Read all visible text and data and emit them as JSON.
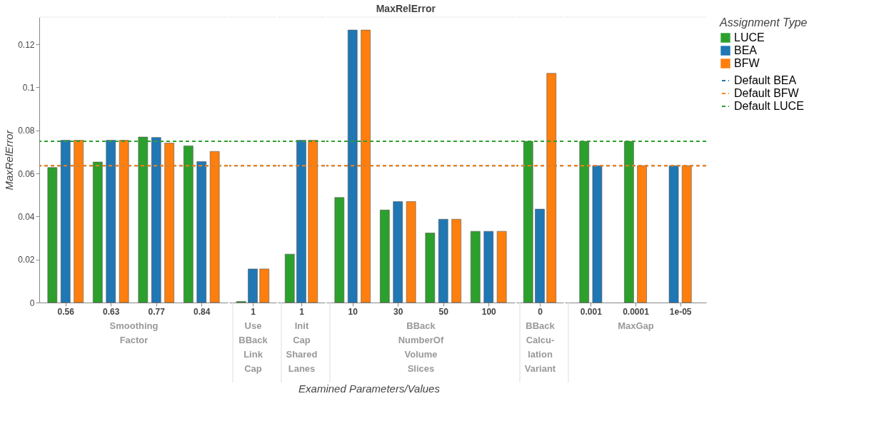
{
  "chart_data": [
    {
      "type": "bar",
      "title": "MaxRelError",
      "xlabel": "Smoothing\nFactor",
      "ylabel": "MaxRelError",
      "legend_title": "Assignment Type",
      "annotations": [
        "Examined Parameters/Values"
      ],
      "categories": [
        "0.56",
        "0.63",
        "0.77",
        "0.84"
      ],
      "series": [
        {
          "name": "LUCE",
          "color": "#2ca02c",
          "values": [
            0.0627,
            0.0653,
            0.0769,
            0.0728
          ]
        },
        {
          "name": "BEA",
          "color": "#1f77b4",
          "values": [
            0.0754,
            0.0754,
            0.0767,
            0.0655
          ]
        },
        {
          "name": "BFW",
          "color": "#ff7f0e",
          "values": [
            0.0754,
            0.0754,
            0.0741,
            0.0702
          ]
        }
      ],
      "ref_lines": [
        {
          "axis": "y",
          "value": 0.0636,
          "label": "Default BEA",
          "color": "#1f77b4",
          "line_style": "dashed"
        },
        {
          "axis": "y",
          "value": 0.0636,
          "label": "Default BFW",
          "color": "#ff7f0e",
          "line_style": "dashed"
        },
        {
          "axis": "y",
          "value": 0.0749,
          "label": "Default LUCE",
          "color": "#2ca02c",
          "line_style": "dashed"
        }
      ],
      "ylim": [
        0,
        0.1326
      ],
      "yticks": [
        {
          "value": 0,
          "label": "0"
        },
        0.02,
        0.04,
        0.06,
        0.08,
        {
          "value": 0.1,
          "label": "0.1"
        },
        0.12
      ],
      "grid": false,
      "legend": "top right"
    },
    {
      "type": "bar",
      "xlabel": "Use\nBBack\nLink\nCap",
      "categories": [
        "1"
      ],
      "series": [
        {
          "name": "LUCE",
          "color": "#2ca02c",
          "values": [
            0.0005
          ]
        },
        {
          "name": "BEA",
          "color": "#1f77b4",
          "values": [
            0.0156
          ]
        },
        {
          "name": "BFW",
          "color": "#ff7f0e",
          "values": [
            0.0156
          ]
        }
      ],
      "ref_lines": [
        {
          "axis": "y",
          "value": 0.0636,
          "color": "#1f77b4",
          "line_style": "dashed"
        },
        {
          "axis": "y",
          "value": 0.0636,
          "color": "#ff7f0e",
          "line_style": "dashed"
        },
        {
          "axis": "y",
          "value": 0.0749,
          "color": "#2ca02c",
          "line_style": "dashed"
        }
      ],
      "ylim": [
        0,
        0.1326
      ],
      "tick_labels": "x"
    },
    {
      "type": "bar",
      "xlabel": "Init\nCap\nShared\nLanes",
      "categories": [
        "1"
      ],
      "series": [
        {
          "name": "LUCE",
          "color": "#2ca02c",
          "values": [
            0.0225
          ]
        },
        {
          "name": "BEA",
          "color": "#1f77b4",
          "values": [
            0.0754
          ]
        },
        {
          "name": "BFW",
          "color": "#ff7f0e",
          "values": [
            0.0754
          ]
        }
      ],
      "ref_lines": [
        {
          "axis": "y",
          "value": 0.0636,
          "color": "#1f77b4",
          "line_style": "dashed"
        },
        {
          "axis": "y",
          "value": 0.0636,
          "color": "#ff7f0e",
          "line_style": "dashed"
        },
        {
          "axis": "y",
          "value": 0.0749,
          "color": "#2ca02c",
          "line_style": "dashed"
        }
      ],
      "ylim": [
        0,
        0.1326
      ],
      "tick_labels": "x"
    },
    {
      "type": "bar",
      "xlabel": "BBack\nNumberOf\nVolume\nSlices",
      "categories": [
        "10",
        "30",
        "50",
        "100"
      ],
      "series": [
        {
          "name": "LUCE",
          "color": "#2ca02c",
          "values": [
            0.0488,
            0.043,
            0.0323,
            0.0331
          ]
        },
        {
          "name": "BEA",
          "color": "#1f77b4",
          "values": [
            0.1266,
            0.0469,
            0.0387,
            0.0331
          ]
        },
        {
          "name": "BFW",
          "color": "#ff7f0e",
          "values": [
            0.1266,
            0.0469,
            0.0387,
            0.0331
          ]
        }
      ],
      "ref_lines": [
        {
          "axis": "y",
          "value": 0.0636,
          "color": "#1f77b4",
          "line_style": "dashed"
        },
        {
          "axis": "y",
          "value": 0.0636,
          "color": "#ff7f0e",
          "line_style": "dashed"
        },
        {
          "axis": "y",
          "value": 0.0749,
          "color": "#2ca02c",
          "line_style": "dashed"
        }
      ],
      "ylim": [
        0,
        0.1326
      ],
      "tick_labels": "x"
    },
    {
      "type": "bar",
      "xlabel": "BBack\nCalcu-\nlation\nVariant",
      "categories": [
        "0"
      ],
      "series": [
        {
          "name": "LUCE",
          "color": "#2ca02c",
          "values": [
            0.0749
          ]
        },
        {
          "name": "BEA",
          "color": "#1f77b4",
          "values": [
            0.0434
          ]
        },
        {
          "name": "BFW",
          "color": "#ff7f0e",
          "values": [
            0.1065
          ]
        }
      ],
      "ref_lines": [
        {
          "axis": "y",
          "value": 0.0636,
          "color": "#1f77b4",
          "line_style": "dashed"
        },
        {
          "axis": "y",
          "value": 0.0636,
          "color": "#ff7f0e",
          "line_style": "dashed"
        },
        {
          "axis": "y",
          "value": 0.0749,
          "color": "#2ca02c",
          "line_style": "dashed"
        }
      ],
      "ylim": [
        0,
        0.1326
      ],
      "tick_labels": "x"
    },
    {
      "type": "bar",
      "xlabel": "MaxGap",
      "categories": [
        "0.001",
        "0.0001",
        "1e-05"
      ],
      "series": [
        {
          "name": "LUCE",
          "color": "#2ca02c",
          "values": [
            0.0749,
            0.0749,
            null
          ]
        },
        {
          "name": "BEA",
          "color": "#1f77b4",
          "values": [
            0.0636,
            null,
            0.0636
          ]
        },
        {
          "name": "BFW",
          "color": "#ff7f0e",
          "values": [
            null,
            0.0636,
            0.0636
          ]
        }
      ],
      "ref_lines": [
        {
          "axis": "y",
          "value": 0.0636,
          "color": "#1f77b4",
          "line_style": "dashed"
        },
        {
          "axis": "y",
          "value": 0.0636,
          "color": "#ff7f0e",
          "line_style": "dashed"
        },
        {
          "axis": "y",
          "value": 0.0749,
          "color": "#2ca02c",
          "line_style": "dashed"
        }
      ],
      "ylim": [
        0,
        0.1326
      ],
      "tick_labels": "x"
    }
  ]
}
